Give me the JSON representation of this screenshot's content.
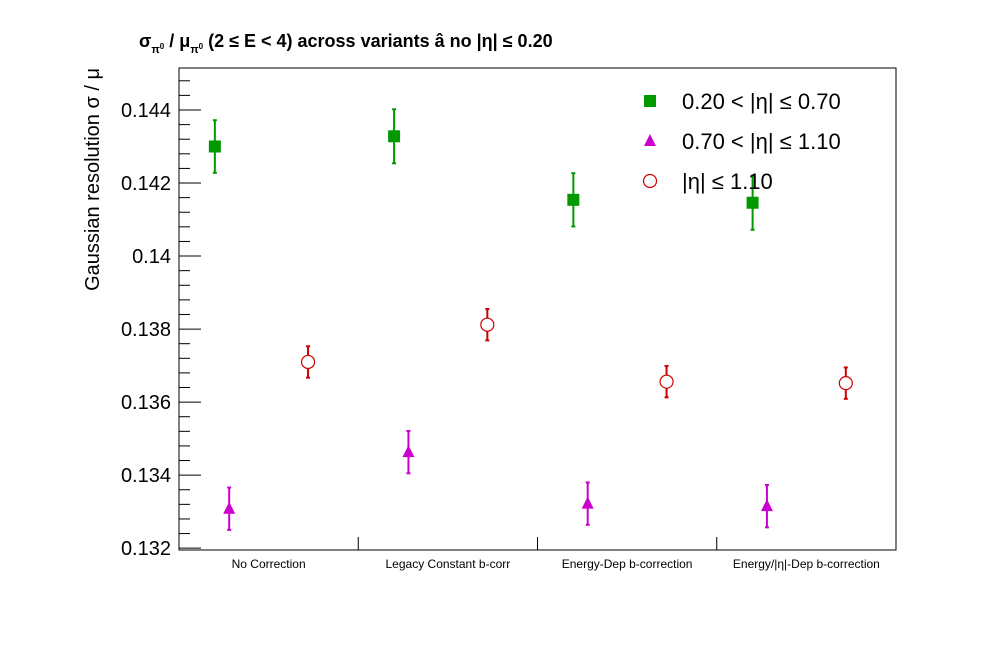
{
  "title": {
    "sigma": "σ",
    "sub_pi": "π",
    "sup_zero": "0",
    "slash": " / ",
    "mu": "μ",
    "rest": " (2 ≤ E < 4) across variants  â  no |η| ≤ 0.20"
  },
  "chart_data": {
    "type": "scatter",
    "title": "σπ0 / μπ0 (2 ≤ E < 4) across variants  â  no |η| ≤ 0.20",
    "xlabel": "",
    "ylabel": "Gaussian resolution σ / μ",
    "categories": [
      "No Correction",
      "Legacy Constant b-corr",
      "Energy-Dep b-correction",
      "Energy/|η|-Dep b-correction"
    ],
    "ylim": [
      0.13195,
      0.14515
    ],
    "yticks": [
      0.132,
      0.134,
      0.136,
      0.138,
      0.14,
      0.142,
      0.144
    ],
    "ytick_labels": [
      "0.132",
      "0.134",
      "0.136",
      "0.138",
      "0.14",
      "0.142",
      "0.144"
    ],
    "legend_position": "top-right",
    "grid": false,
    "series": [
      {
        "name": "0.20 < |η| ≤ 0.70",
        "marker": "square",
        "color": "#009900",
        "values": [
          0.143,
          0.14328,
          0.14154,
          0.14146
        ],
        "errors": [
          0.00072,
          0.00074,
          0.00073,
          0.00074
        ]
      },
      {
        "name": "0.70 < |η| ≤ 1.10",
        "marker": "triangle",
        "color": "#cc00cc",
        "values": [
          0.13308,
          0.13463,
          0.13322,
          0.13315
        ],
        "errors": [
          0.00058,
          0.00058,
          0.00058,
          0.00058
        ]
      },
      {
        "name": "|η| ≤ 1.10",
        "marker": "open-circle",
        "color": "#cc0000",
        "values": [
          0.1371,
          0.13812,
          0.13656,
          0.13652
        ],
        "errors": [
          0.00043,
          0.00043,
          0.00043,
          0.00043
        ]
      }
    ]
  }
}
